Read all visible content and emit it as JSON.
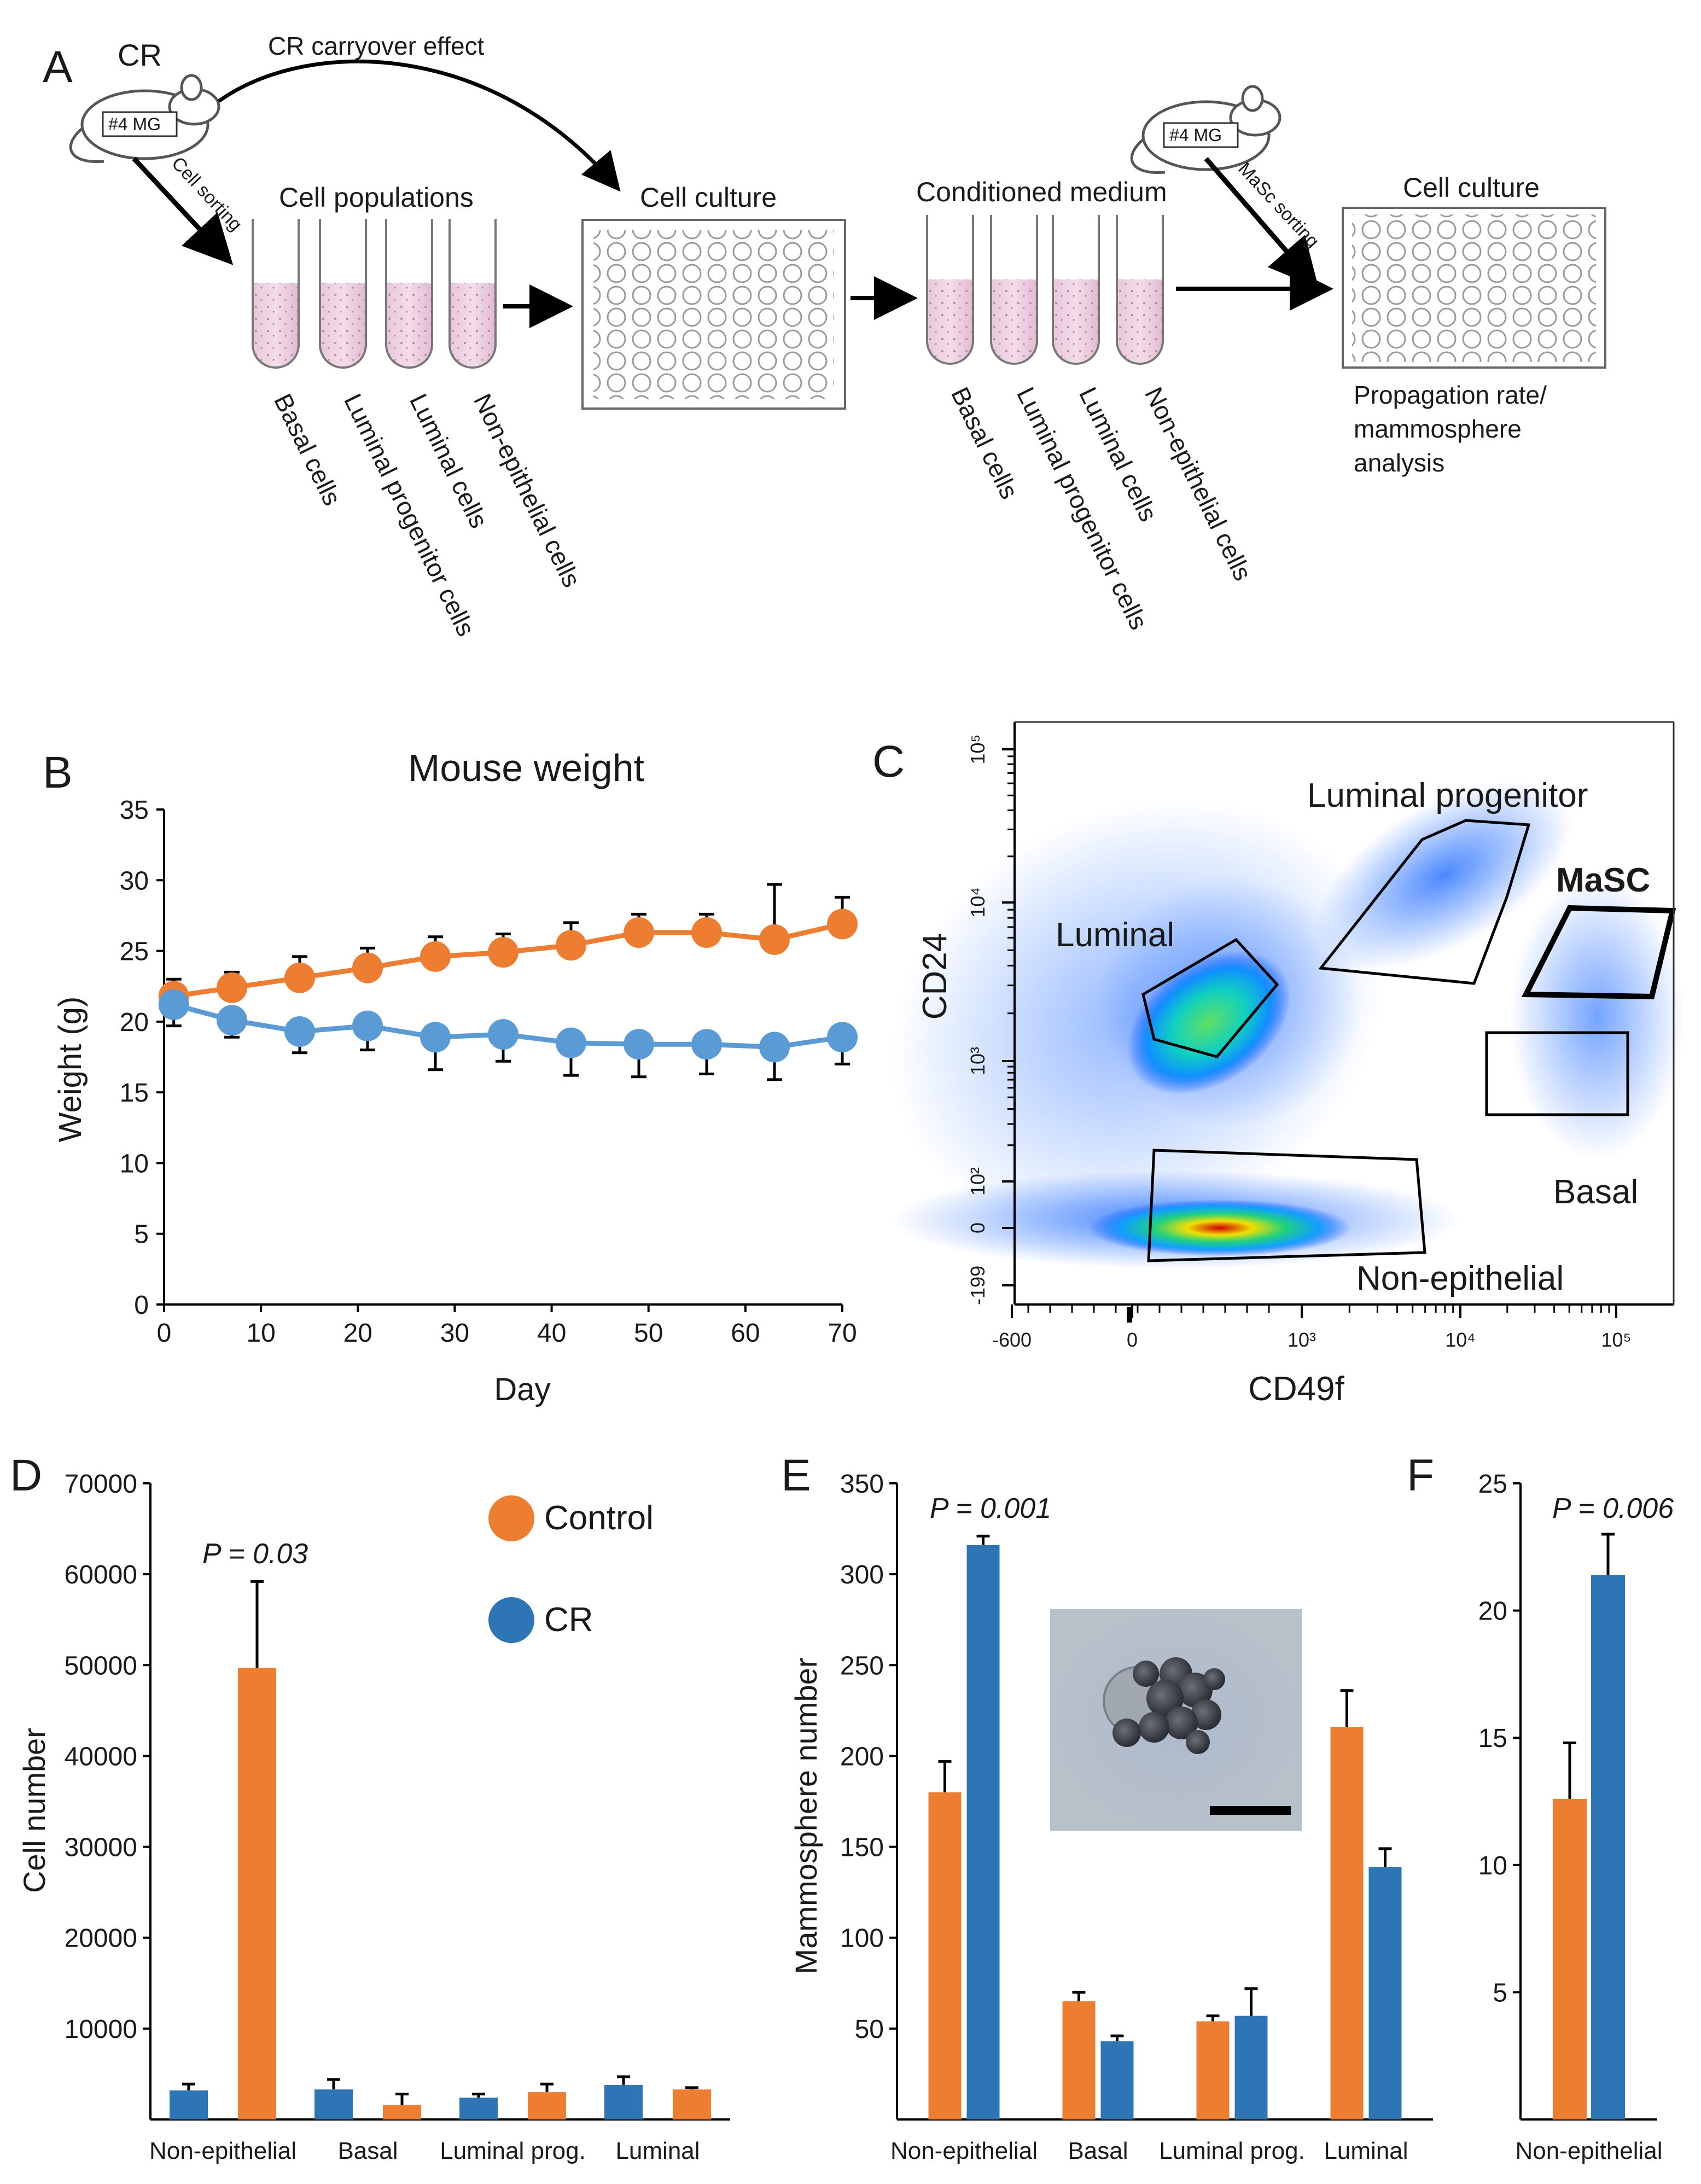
{
  "colors": {
    "control": "#ED7D31",
    "cr": "#2E75B6",
    "cr_light": "#5B9BD5",
    "axis": "#000000"
  },
  "panel_a": {
    "label": "A",
    "cr_label": "CR",
    "mouse_tag": "#4 MG",
    "carryover_label": "CR carryover effect",
    "cell_sorting_label": "Cell sorting",
    "cell_populations_title": "Cell populations",
    "cell_culture_title": "Cell culture",
    "conditioned_medium_title": "Conditioned medium",
    "masc_sorting_label": "MaSc sorting",
    "cell_culture_title_2": "Cell culture",
    "tube_labels": [
      "Basal cells",
      "Luminal progenitor cells",
      "Luminal cells",
      "Non-epithelial  cells"
    ],
    "analysis_lines": [
      "Propagation rate/",
      "mammosphere",
      "analysis"
    ]
  },
  "panel_b": {
    "label": "B",
    "title": "Mouse weight",
    "ylabel": "Weight (g)",
    "xlabel": "Day"
  },
  "panel_c": {
    "label": "C",
    "xlabel": "CD49f",
    "ylabel": "CD24",
    "gates": [
      "Luminal progenitor",
      "MaSC",
      "Luminal",
      "Basal",
      "Non-epithelial"
    ],
    "yticks": [
      "10⁵",
      "10⁴",
      "10³",
      "10²",
      "0",
      "-199"
    ],
    "xticks": [
      "-600",
      "0",
      "10³",
      "10⁴",
      "10⁵"
    ]
  },
  "panel_d": {
    "label": "D",
    "ylabel": "Cell number",
    "pvalue": "P = 0.03"
  },
  "panel_e": {
    "label": "E",
    "ylabel": "Mammosphere number",
    "pvalue": "P = 0.001"
  },
  "panel_f": {
    "label": "F",
    "pvalue": "P = 0.006"
  },
  "legend": {
    "control": "Control",
    "cr": "CR"
  },
  "chart_data": [
    {
      "id": "B",
      "type": "line",
      "title": "Mouse weight",
      "xlabel": "Day",
      "ylabel": "Weight (g)",
      "xlim": [
        0,
        70
      ],
      "ylim": [
        0,
        35
      ],
      "xticks": [
        0,
        10,
        20,
        30,
        40,
        50,
        60,
        70
      ],
      "yticks": [
        0,
        5,
        10,
        15,
        20,
        25,
        30,
        35
      ],
      "x": [
        1,
        7,
        14,
        21,
        28,
        35,
        42,
        49,
        56,
        63,
        70
      ],
      "series": [
        {
          "name": "Control",
          "values": [
            21.8,
            22.4,
            23.1,
            23.8,
            24.6,
            24.9,
            25.4,
            26.3,
            26.3,
            25.8,
            26.9
          ],
          "errors": [
            1.2,
            1.1,
            1.5,
            1.4,
            1.4,
            1.3,
            1.6,
            1.3,
            1.3,
            3.9,
            1.9
          ]
        },
        {
          "name": "CR",
          "values": [
            21.2,
            20.1,
            19.3,
            19.7,
            18.9,
            19.1,
            18.5,
            18.4,
            18.4,
            18.2,
            18.9
          ],
          "errors": [
            1.5,
            1.2,
            1.5,
            1.7,
            2.3,
            1.9,
            2.3,
            2.3,
            2.1,
            2.3,
            1.9
          ]
        }
      ]
    },
    {
      "id": "D",
      "type": "bar",
      "ylabel": "Cell number",
      "categories": [
        "Non-epithelial",
        "Basal",
        "Luminal prog.",
        "Luminal"
      ],
      "ylim": [
        0,
        70000
      ],
      "yticks": [
        10000,
        20000,
        30000,
        40000,
        50000,
        60000,
        70000
      ],
      "series": [
        {
          "name": "CR",
          "values": [
            3200,
            3300,
            2400,
            3800
          ],
          "errors": [
            700,
            1100,
            400,
            900
          ]
        },
        {
          "name": "Control",
          "values": [
            49700,
            1600,
            3000,
            3300
          ],
          "errors": [
            9500,
            1200,
            900,
            200
          ]
        }
      ],
      "annotations": [
        "P = 0.03"
      ]
    },
    {
      "id": "E",
      "type": "bar",
      "ylabel": "Mammosphere number",
      "categories": [
        "Non-epithelial",
        "Basal",
        "Luminal prog.",
        "Luminal"
      ],
      "ylim": [
        0,
        350
      ],
      "yticks": [
        50,
        100,
        150,
        200,
        250,
        300,
        350
      ],
      "series": [
        {
          "name": "Control",
          "values": [
            180,
            65,
            54,
            216
          ],
          "errors": [
            17,
            5,
            3,
            20
          ]
        },
        {
          "name": "CR",
          "values": [
            316,
            43,
            57,
            139
          ],
          "errors": [
            5,
            3,
            15,
            10
          ]
        }
      ],
      "annotations": [
        "P = 0.001"
      ]
    },
    {
      "id": "F",
      "type": "bar",
      "categories": [
        "Non-epithelial"
      ],
      "ylim": [
        0,
        25
      ],
      "yticks": [
        5,
        10,
        15,
        20,
        25
      ],
      "series": [
        {
          "name": "Control",
          "values": [
            12.6
          ],
          "errors": [
            2.2
          ]
        },
        {
          "name": "CR",
          "values": [
            21.4
          ],
          "errors": [
            1.6
          ]
        }
      ],
      "annotations": [
        "P = 0.006"
      ]
    }
  ]
}
